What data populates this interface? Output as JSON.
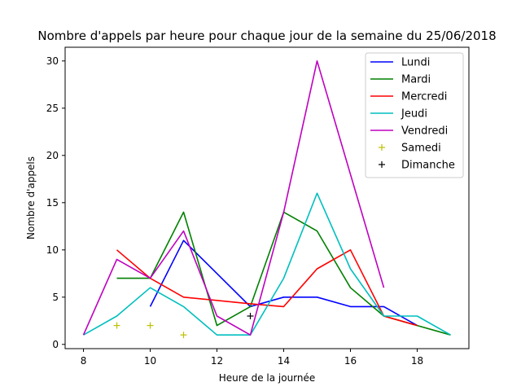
{
  "chart_data": {
    "type": "line",
    "title": "Nombre d'appels par heure pour chaque jour de la semaine du 25/06/2018",
    "xlabel": "Heure de la journée",
    "ylabel": "Nombre d'appels",
    "xlim": [
      7.45,
      19.55
    ],
    "ylim": [
      -0.45,
      31.45
    ],
    "xticks": [
      8,
      10,
      12,
      14,
      16,
      18
    ],
    "yticks": [
      0,
      5,
      10,
      15,
      20,
      25,
      30
    ],
    "grid": false,
    "legend_position": "top-right",
    "series": [
      {
        "name": "Lundi",
        "color": "#0000ff",
        "marker": "line",
        "x": [
          10,
          11,
          13,
          14,
          15,
          16,
          17,
          18
        ],
        "y": [
          4,
          11,
          4,
          5,
          5,
          4,
          4,
          2
        ]
      },
      {
        "name": "Mardi",
        "color": "#008000",
        "marker": "line",
        "x": [
          9,
          10,
          11,
          12,
          13,
          14,
          15,
          16,
          17,
          18,
          19
        ],
        "y": [
          7,
          7,
          14,
          2,
          4,
          14,
          12,
          6,
          3,
          2,
          1
        ]
      },
      {
        "name": "Mercredi",
        "color": "#ff0000",
        "marker": "line",
        "x": [
          9,
          10,
          11,
          13,
          14,
          15,
          16,
          17,
          18
        ],
        "y": [
          10,
          7,
          5,
          4.3,
          4,
          8,
          10,
          3,
          2
        ]
      },
      {
        "name": "Jeudi",
        "color": "#00bfbf",
        "marker": "line",
        "x": [
          8,
          9,
          10,
          11,
          12,
          13,
          14,
          15,
          16,
          17,
          18,
          19
        ],
        "y": [
          1,
          3,
          6,
          4,
          1,
          1,
          7,
          16,
          8,
          3,
          3,
          1
        ]
      },
      {
        "name": "Vendredi",
        "color": "#bf00bf",
        "marker": "line",
        "x": [
          8,
          9,
          10,
          11,
          12,
          13,
          14,
          15,
          17
        ],
        "y": [
          1,
          9,
          7,
          12,
          3,
          1,
          14,
          30,
          6
        ]
      },
      {
        "name": "Samedi",
        "color": "#bfbf00",
        "marker": "plus",
        "x": [
          9,
          10,
          11
        ],
        "y": [
          2,
          2,
          1
        ]
      },
      {
        "name": "Dimanche",
        "color": "#000000",
        "marker": "plus",
        "x": [
          13
        ],
        "y": [
          3
        ]
      }
    ]
  }
}
